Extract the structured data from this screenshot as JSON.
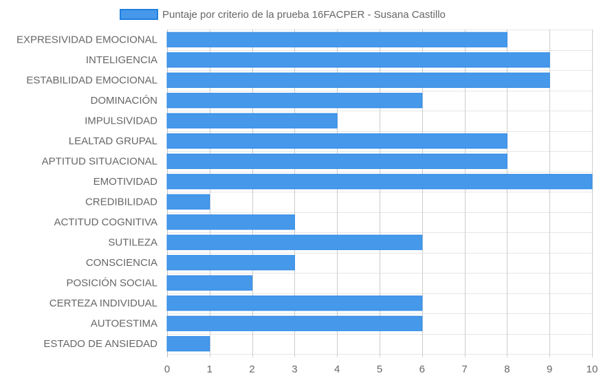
{
  "chart_data": {
    "type": "bar",
    "orientation": "horizontal",
    "categories": [
      "EXPRESIVIDAD EMOCIONAL",
      "INTELIGENCIA",
      "ESTABILIDAD EMOCIONAL",
      "DOMINACIÓN",
      "IMPULSIVIDAD",
      "LEALTAD GRUPAL",
      "APTITUD SITUACIONAL",
      "EMOTIVIDAD",
      "CREDIBILIDAD",
      "ACTITUD COGNITIVA",
      "SUTILEZA",
      "CONSCIENCIA",
      "POSICIÓN SOCIAL",
      "CERTEZA INDIVIDUAL",
      "AUTOESTIMA",
      "ESTADO DE ANSIEDAD"
    ],
    "series": [
      {
        "name": "Puntaje por criterio de la prueba 16FACPER - Susana Castillo",
        "values": [
          8,
          9,
          9,
          6,
          4,
          8,
          8,
          10,
          1,
          3,
          6,
          3,
          2,
          6,
          6,
          1
        ],
        "color": "#4698ea",
        "border_color": "#2e8ae6"
      }
    ],
    "xlim": [
      0,
      10
    ],
    "xticks": [
      "0",
      "1",
      "2",
      "3",
      "4",
      "5",
      "6",
      "7",
      "8",
      "9",
      "10"
    ],
    "grid": true,
    "legend_position": "top"
  }
}
